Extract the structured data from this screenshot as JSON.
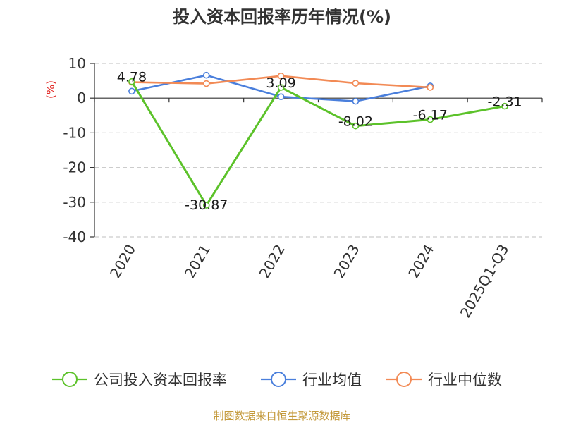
{
  "chart_data": {
    "type": "line",
    "title": "投入资本回报率历年情况(%)",
    "ylabel": "(%)",
    "xlabel": "",
    "categories": [
      "2020",
      "2021",
      "2022",
      "2023",
      "2024",
      "2025Q1-Q3"
    ],
    "ylim": [
      -40,
      10
    ],
    "yticks": [
      10,
      0,
      -10,
      -20,
      -30,
      -40
    ],
    "grid": true,
    "legend_position": "bottom",
    "series": [
      {
        "name": "公司投入资本回报率",
        "color": "#5cc22a",
        "values": [
          4.78,
          -30.87,
          3.09,
          -8.02,
          -6.17,
          -2.31
        ],
        "labels": [
          "4.78",
          "-30.87",
          "3.09",
          "-8.02",
          "-6.17",
          "-2.31"
        ]
      },
      {
        "name": "行业均值",
        "color": "#4a7fdc",
        "values": [
          2.0,
          6.6,
          0.4,
          -0.9,
          3.5,
          null
        ]
      },
      {
        "name": "行业中位数",
        "color": "#f28a55",
        "values": [
          4.6,
          4.2,
          6.4,
          4.3,
          3.1,
          null
        ]
      }
    ]
  },
  "footer": {
    "source": "制图数据来自恒生聚源数据库"
  }
}
